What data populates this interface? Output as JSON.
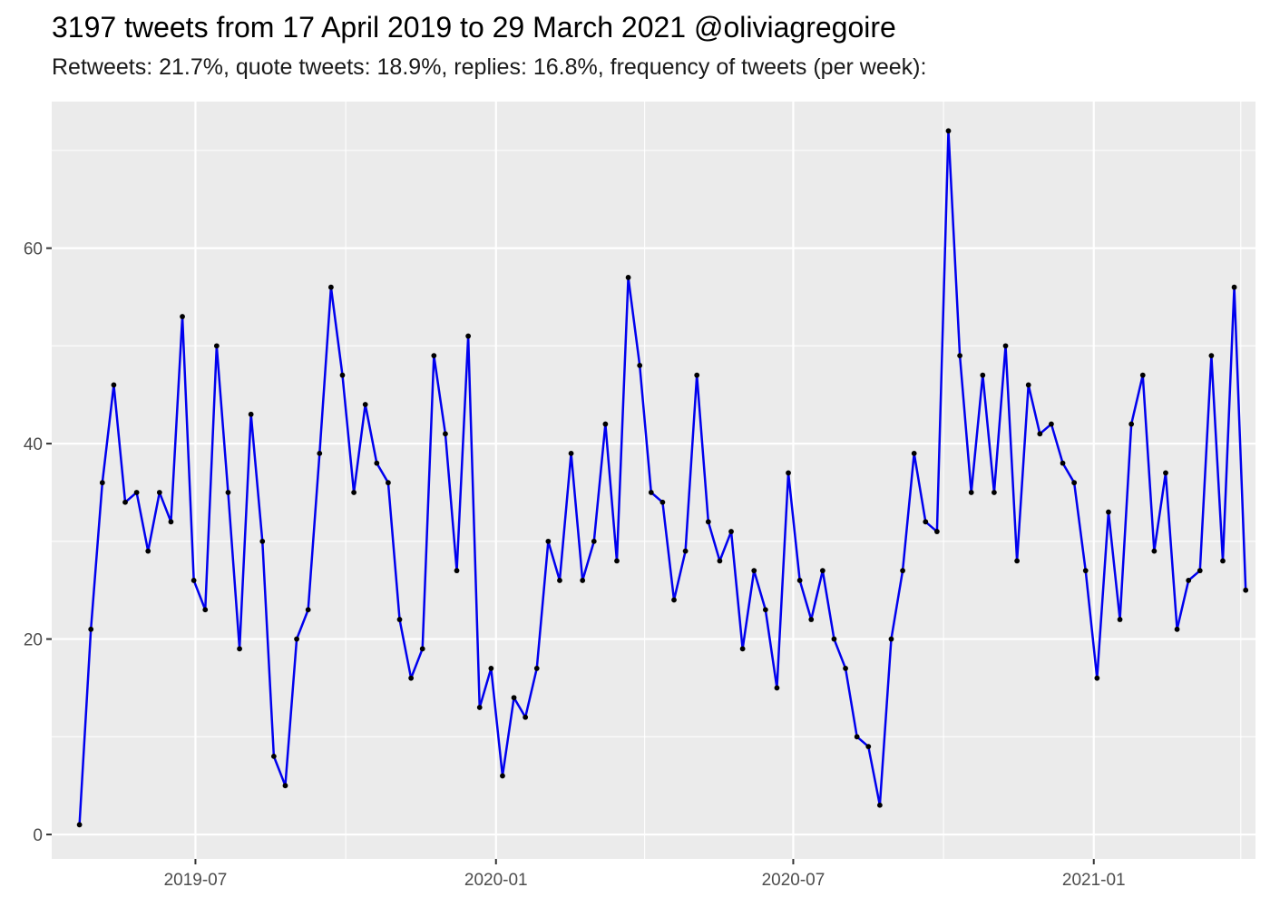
{
  "chart_data": {
    "type": "line",
    "title": "3197 tweets from 17 April 2019 to 29 March 2021 @oliviagregoire",
    "subtitle": "Retweets: 21.7%, quote tweets: 18.9%, replies: 16.8%, frequency of tweets (per week):",
    "xlabel": "",
    "ylabel": "",
    "x_start": "2019-04-21",
    "x_step_days": 7,
    "xlim": [
      "2019-04-04",
      "2021-04-10"
    ],
    "ylim": [
      -2.5,
      75
    ],
    "y_ticks": [
      0,
      20,
      40,
      60
    ],
    "x_ticks": [
      {
        "date": "2019-07-01",
        "label": "2019-07"
      },
      {
        "date": "2020-01-01",
        "label": "2020-01"
      },
      {
        "date": "2020-07-01",
        "label": "2020-07"
      },
      {
        "date": "2021-01-01",
        "label": "2021-01"
      }
    ],
    "x_minor_ticks": [
      "2019-04-01",
      "2019-10-01",
      "2020-04-01",
      "2020-10-01",
      "2021-04-01"
    ],
    "grid": true,
    "colors": {
      "line": "#0000ee",
      "point": "#000000",
      "panel": "#ebebeb",
      "grid": "#ffffff"
    },
    "series": [
      {
        "values": [
          1,
          21,
          36,
          46,
          34,
          35,
          29,
          35,
          32,
          53,
          26,
          23,
          50,
          35,
          19,
          43,
          30,
          8,
          5,
          20,
          23,
          39,
          56,
          47,
          35,
          44,
          38,
          36,
          22,
          16,
          19,
          49,
          41,
          27,
          51,
          13,
          17,
          6,
          14,
          12,
          17,
          30,
          26,
          39,
          26,
          30,
          42,
          28,
          57,
          48,
          35,
          34,
          24,
          29,
          47,
          32,
          28,
          31,
          19,
          27,
          23,
          15,
          37,
          26,
          22,
          27,
          20,
          17,
          10,
          9,
          3,
          20,
          27,
          39,
          32,
          31,
          72,
          49,
          35,
          47,
          35,
          50,
          28,
          46,
          41,
          42,
          38,
          36,
          27,
          16,
          33,
          22,
          42,
          47,
          29,
          37,
          21,
          26,
          27,
          49,
          28,
          56,
          25
        ]
      }
    ]
  }
}
